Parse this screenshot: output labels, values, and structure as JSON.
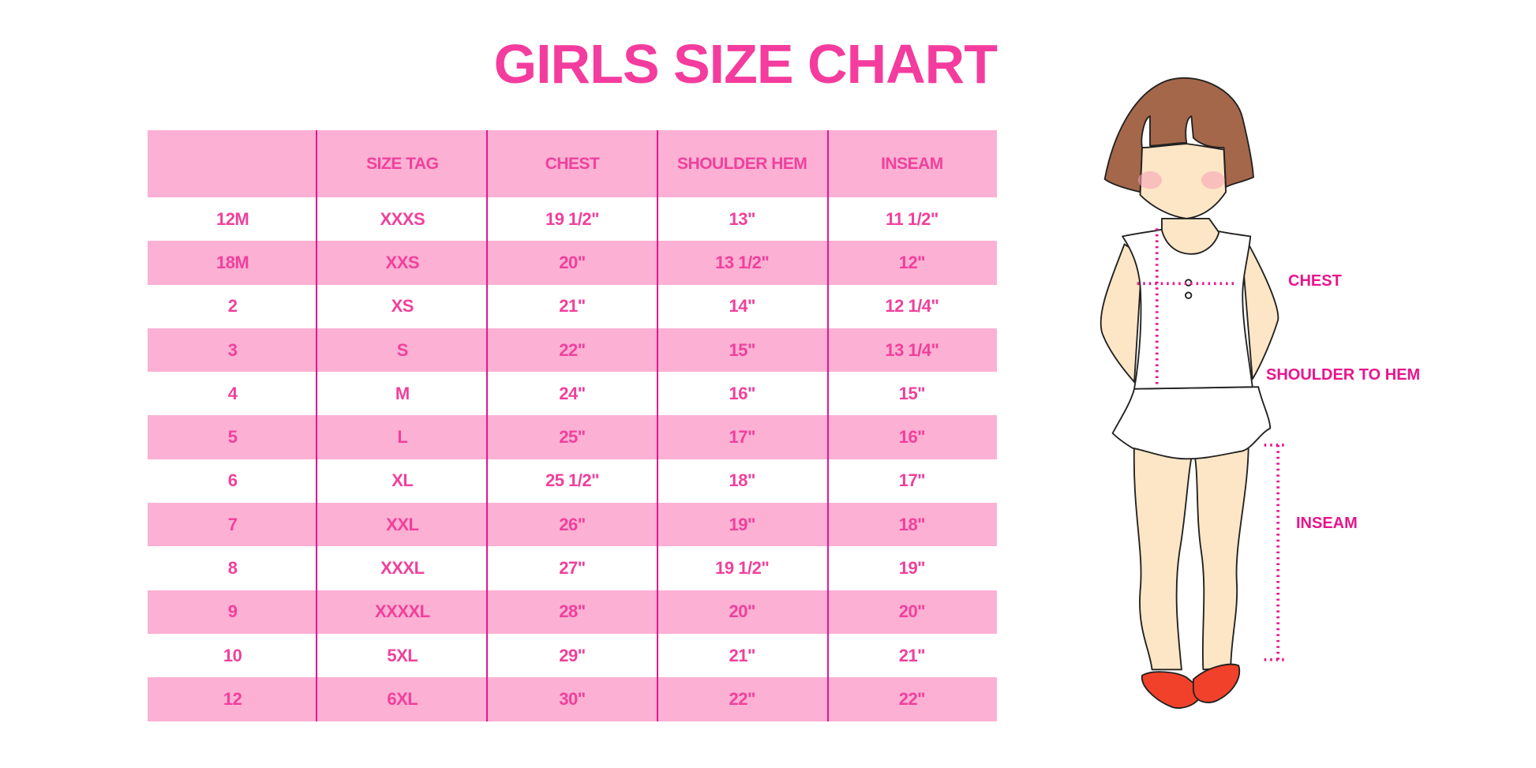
{
  "title": "GIRLS SIZE CHART",
  "table": {
    "headers": [
      "",
      "SIZE TAG",
      "CHEST",
      "SHOULDER HEM",
      "INSEAM"
    ],
    "rows": [
      [
        "12M",
        "XXXS",
        "19 1/2\"",
        "13\"",
        "11 1/2\""
      ],
      [
        "18M",
        "XXS",
        "20\"",
        "13 1/2\"",
        "12\""
      ],
      [
        "2",
        "XS",
        "21\"",
        "14\"",
        "12 1/4\""
      ],
      [
        "3",
        "S",
        "22\"",
        "15\"",
        "13 1/4\""
      ],
      [
        "4",
        "M",
        "24\"",
        "16\"",
        "15\""
      ],
      [
        "5",
        "L",
        "25\"",
        "17\"",
        "16\""
      ],
      [
        "6",
        "XL",
        "25 1/2\"",
        "18\"",
        "17\""
      ],
      [
        "7",
        "XXL",
        "26\"",
        "19\"",
        "18\""
      ],
      [
        "8",
        "XXXL",
        "27\"",
        "19 1/2\"",
        "19\""
      ],
      [
        "9",
        "XXXXL",
        "28\"",
        "20\"",
        "20\""
      ],
      [
        "10",
        "5XL",
        "29\"",
        "21\"",
        "21\""
      ],
      [
        "12",
        "6XL",
        "30\"",
        "22\"",
        "22\""
      ]
    ]
  },
  "figure": {
    "labels": {
      "chest": "CHEST",
      "shoulder_to_hem": "SHOULDER TO HEM",
      "inseam": "INSEAM"
    }
  },
  "colors": {
    "title": "#f43c9e",
    "stripe": "#fcb0d4",
    "divider": "#e6158f",
    "label": "#e8158c"
  }
}
